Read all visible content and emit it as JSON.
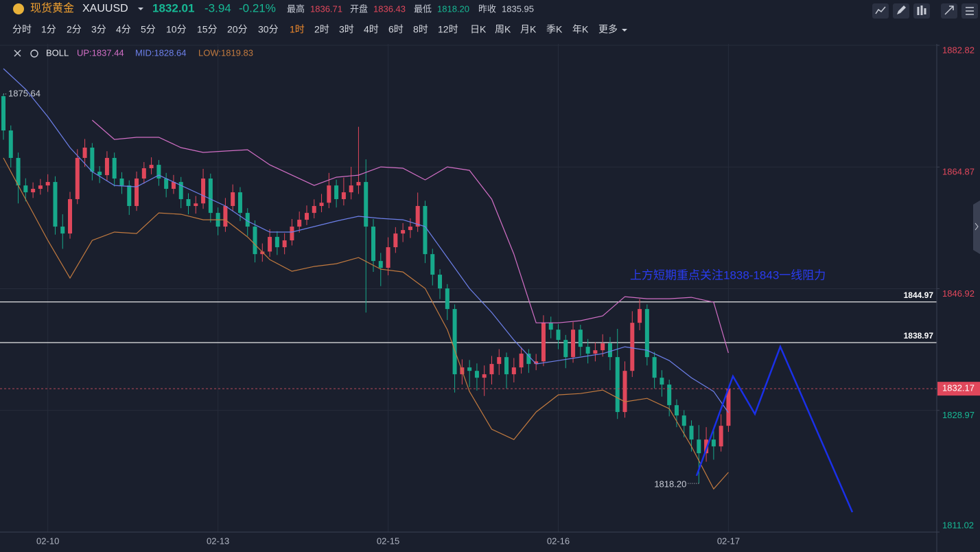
{
  "header": {
    "name": "现货黄金",
    "symbol": "XAUUSD",
    "price": 1832.01,
    "change": -3.94,
    "change_pct": "-0.21%",
    "stats": [
      {
        "label": "最高",
        "value": 1836.71
      },
      {
        "label": "开盘",
        "value": 1836.43
      },
      {
        "label": "最低",
        "value": "1818.20"
      },
      {
        "label": "昨收",
        "value": 1835.95
      }
    ],
    "timeframes": [
      "分时",
      "1分",
      "2分",
      "3分",
      "4分",
      "5分",
      "10分",
      "15分",
      "20分",
      "30分",
      "1时",
      "2时",
      "3时",
      "4时",
      "6时",
      "8时",
      "12时",
      "日K",
      "周K",
      "月K",
      "季K",
      "年K",
      "更多"
    ],
    "active_timeframe": "1时"
  },
  "chart_data": {
    "type": "candlestick",
    "categories": [
      null,
      null,
      null,
      null,
      null,
      null,
      "02-10",
      null,
      null,
      null,
      null,
      null,
      null,
      null,
      null,
      null,
      null,
      null,
      null,
      null,
      null,
      null,
      null,
      null,
      null,
      null,
      null,
      null,
      null,
      "02-13",
      null,
      null,
      null,
      null,
      null,
      null,
      null,
      null,
      null,
      null,
      null,
      null,
      null,
      null,
      null,
      null,
      null,
      null,
      null,
      null,
      null,
      null,
      "02-15",
      null,
      null,
      null,
      null,
      null,
      null,
      null,
      null,
      null,
      null,
      null,
      null,
      null,
      null,
      null,
      null,
      null,
      null,
      null,
      null,
      null,
      null,
      "02-16",
      null,
      null,
      null,
      null,
      null,
      null,
      null,
      null,
      null,
      null,
      null,
      null,
      null,
      null,
      null,
      null,
      null,
      null,
      null,
      null,
      null,
      null,
      "02-17"
    ],
    "open": [
      1875.32,
      1870.26,
      1866.21,
      1862.15,
      1861.14,
      1861.65,
      1862.15,
      1862.66,
      1856.08,
      1855.06,
      1860.13,
      1866.21,
      1867.73,
      1864.18,
      1863.67,
      1866.21,
      1863.17,
      1862.15,
      1859.12,
      1863.17,
      1864.69,
      1865.19,
      1863.17,
      1861.65,
      1862.66,
      1860.13,
      1859.12,
      1859.5,
      1863.17,
      1858.1,
      1856.08,
      1859.12,
      1861.14,
      1858.1,
      1856.08,
      1852.02,
      1852.4,
      1854.56,
      1853.04,
      1854.05,
      1856.08,
      1857.09,
      1858.1,
      1859.12,
      1859.6,
      1862.15,
      1860.13,
      1861.14,
      1862.15,
      1862.66,
      1856.08,
      1851.01,
      1850.0,
      1853.04,
      1855.06,
      1855.57,
      1856.08,
      1859.12,
      1852.02,
      1848.99,
      1846.96,
      1843.92,
      1834.3,
      1835.31,
      1834.8,
      1833.79,
      1834.3,
      1835.82,
      1836.83,
      1834.3,
      1835.31,
      1837.34,
      1835.82,
      1836.2,
      1841.89,
      1840.88,
      1839.36,
      1836.83,
      1840.88,
      1838.35,
      1837.34,
      1837.84,
      1838.86,
      1836.83,
      1828.73,
      1834.8,
      1841.89,
      1843.92,
      1836.83,
      1833.79,
      1832.78,
      1829.74,
      1828.22,
      1826.7,
      1824.67,
      1822.65,
      1824.67,
      1823.66,
      1826.7
    ],
    "high": [
      1875.64,
      1871.0,
      1867.0,
      1863.2,
      1862.6,
      1863.1,
      1863.8,
      1863.5,
      1857.9,
      1861.2,
      1867.5,
      1869.0,
      1868.4,
      1865.0,
      1867.2,
      1867.0,
      1864.1,
      1862.9,
      1864.2,
      1865.6,
      1866.3,
      1865.9,
      1864.0,
      1863.7,
      1863.4,
      1861.0,
      1860.6,
      1864.6,
      1863.9,
      1858.9,
      1860.3,
      1862.3,
      1861.9,
      1858.8,
      1857.0,
      1853.6,
      1855.7,
      1855.4,
      1855.1,
      1857.2,
      1858.3,
      1859.2,
      1860.1,
      1860.9,
      1864.0,
      1863.0,
      1863.3,
      1864.9,
      1870.8,
      1866.0,
      1857.2,
      1852.2,
      1854.5,
      1856.0,
      1856.6,
      1857.3,
      1861.1,
      1859.9,
      1852.8,
      1849.8,
      1847.6,
      1844.6,
      1836.5,
      1836.4,
      1835.9,
      1835.6,
      1837.0,
      1838.0,
      1837.5,
      1836.7,
      1838.3,
      1838.0,
      1837.3,
      1843.0,
      1842.8,
      1841.7,
      1840.1,
      1842.0,
      1841.6,
      1839.5,
      1839.0,
      1840.2,
      1839.8,
      1841.0,
      1836.2,
      1843.6,
      1845.4,
      1844.6,
      1837.6,
      1834.9,
      1833.5,
      1830.6,
      1829.0,
      1827.5,
      1826.8,
      1826.5,
      1826.0,
      1828.4,
      1832.4
    ],
    "low": [
      1868.9,
      1864.8,
      1859.5,
      1859.8,
      1860.3,
      1860.8,
      1861.2,
      1854.9,
      1852.8,
      1854.3,
      1859.4,
      1864.9,
      1862.9,
      1862.5,
      1862.8,
      1862.0,
      1860.9,
      1857.8,
      1858.4,
      1862.4,
      1863.8,
      1862.1,
      1860.4,
      1860.9,
      1858.8,
      1857.9,
      1858.0,
      1858.7,
      1856.7,
      1854.8,
      1855.3,
      1858.4,
      1856.9,
      1854.7,
      1850.8,
      1850.9,
      1851.6,
      1851.9,
      1852.0,
      1853.3,
      1855.2,
      1856.3,
      1857.3,
      1858.2,
      1858.8,
      1858.9,
      1859.2,
      1860.1,
      1860.9,
      1843.4,
      1849.4,
      1847.3,
      1848.9,
      1852.2,
      1853.8,
      1854.4,
      1855.3,
      1850.7,
      1847.4,
      1845.4,
      1842.3,
      1831.6,
      1832.8,
      1832.4,
      1831.9,
      1831.1,
      1832.8,
      1834.2,
      1832.2,
      1833.1,
      1834.4,
      1834.5,
      1834.9,
      1835.5,
      1839.6,
      1838.0,
      1835.2,
      1836.0,
      1837.0,
      1835.9,
      1836.2,
      1836.9,
      1834.9,
      1827.7,
      1827.9,
      1833.9,
      1840.8,
      1835.6,
      1832.2,
      1831.0,
      1828.1,
      1826.5,
      1825.0,
      1822.9,
      1818.2,
      1821.4,
      1821.7,
      1822.9,
      1825.8
    ],
    "close": [
      1870.26,
      1866.21,
      1862.15,
      1861.14,
      1861.65,
      1862.15,
      1862.66,
      1856.08,
      1855.06,
      1860.13,
      1866.21,
      1867.73,
      1864.18,
      1863.67,
      1866.21,
      1863.17,
      1862.15,
      1859.12,
      1863.17,
      1864.69,
      1865.19,
      1863.17,
      1861.65,
      1862.66,
      1860.13,
      1859.12,
      1859.5,
      1863.17,
      1858.1,
      1856.08,
      1859.12,
      1861.14,
      1858.1,
      1856.08,
      1852.02,
      1852.4,
      1854.56,
      1853.04,
      1854.05,
      1856.08,
      1857.09,
      1858.1,
      1859.12,
      1859.6,
      1862.15,
      1860.13,
      1861.14,
      1862.15,
      1862.66,
      1856.08,
      1851.01,
      1850.0,
      1853.04,
      1855.06,
      1855.57,
      1856.08,
      1859.12,
      1852.02,
      1848.99,
      1846.96,
      1843.92,
      1834.3,
      1835.31,
      1834.8,
      1833.79,
      1834.3,
      1835.82,
      1836.83,
      1834.3,
      1835.31,
      1837.34,
      1835.82,
      1836.2,
      1841.89,
      1840.88,
      1839.36,
      1836.83,
      1840.88,
      1838.35,
      1837.34,
      1837.84,
      1838.86,
      1836.83,
      1828.73,
      1834.8,
      1841.89,
      1843.92,
      1836.83,
      1833.79,
      1832.78,
      1829.74,
      1828.22,
      1826.7,
      1824.67,
      1822.65,
      1824.67,
      1823.66,
      1826.7,
      1832.17
    ],
    "up_color": "#e0475b",
    "down_color": "#17a98b",
    "extremes": [
      {
        "value": 1875.64,
        "label": "1875.64"
      },
      {
        "value": 1818.2,
        "label": "1818.20"
      }
    ],
    "boll": {
      "name": "BOLL",
      "x": [
        0,
        3,
        6,
        9,
        12,
        15,
        18,
        21,
        24,
        27,
        30,
        33,
        36,
        39,
        42,
        45,
        48,
        51,
        54,
        57,
        60,
        63,
        66,
        69,
        72,
        75,
        78,
        81,
        84,
        87,
        90,
        93,
        96,
        98
      ],
      "series": [
        {
          "name": "UP:1837.44",
          "color": "#d26fc6",
          "values": [
            null,
            null,
            null,
            null,
            1871.78,
            1868.94,
            1869.25,
            1869.25,
            1867.73,
            1867.02,
            1867.22,
            1867.42,
            1865.19,
            1863.67,
            1862.15,
            1863.37,
            1863.67,
            1864.89,
            1864.69,
            1862.97,
            1864.89,
            1864.38,
            1860.13,
            1852.02,
            1841.89,
            1841.89,
            1842.2,
            1842.91,
            1845.75,
            1845.44,
            1845.44,
            1845.64,
            1844.93,
            1837.44
          ]
        },
        {
          "name": "MID:1828.64",
          "color": "#6d80ea",
          "values": [
            1879.38,
            1876.34,
            1872.29,
            1867.73,
            1864.18,
            1862.15,
            1861.95,
            1863.67,
            1862.15,
            1860.64,
            1859.12,
            1856.89,
            1855.27,
            1855.27,
            1856.08,
            1856.89,
            1857.6,
            1857.29,
            1857.09,
            1856.08,
            1851.52,
            1846.96,
            1843.42,
            1839.36,
            1835.82,
            1836.32,
            1836.83,
            1837.34,
            1838.35,
            1837.84,
            1836.32,
            1833.79,
            1831.76,
            1828.64
          ]
        },
        {
          "name": "LOW:1819.83",
          "color": "#c27a3f",
          "values": [
            1866.21,
            1860.13,
            1854.05,
            1848.48,
            1854.05,
            1855.27,
            1855.06,
            1858.1,
            1857.9,
            1857.09,
            1857.09,
            1854.56,
            1851.21,
            1849.49,
            1850.2,
            1850.61,
            1851.52,
            1849.8,
            1849.39,
            1846.96,
            1840.88,
            1831.76,
            1826.19,
            1824.67,
            1828.73,
            1831.26,
            1831.46,
            1831.97,
            1830.24,
            1830.75,
            1829.23,
            1823.66,
            1817.38,
            1819.83
          ]
        }
      ]
    },
    "hlines": [
      1844.97,
      1838.97
    ],
    "annotation": "上方短期重点关注1838-1843一线阻力",
    "ylim": [
      1811.02,
      1882.82
    ],
    "yticks": [
      1811.02,
      1828.97,
      1846.92,
      1864.87,
      1882.82
    ],
    "grid": true
  }
}
